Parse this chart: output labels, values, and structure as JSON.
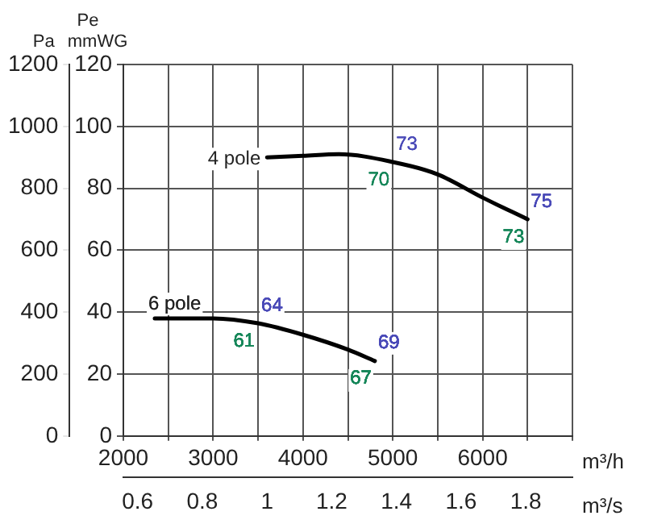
{
  "chart_data": {
    "type": "line",
    "xlabel": "m³/h",
    "x2label": "m³/s",
    "ylabel": "Pe mmWG",
    "y2label": "Pa",
    "xlim": [
      2000,
      7000
    ],
    "xticks": [
      2000,
      {
        "value": 2500,
        "label": null
      },
      3000,
      {
        "value": 3500,
        "label": null
      },
      4000,
      {
        "value": 4500,
        "label": null
      },
      5000,
      {
        "value": 5500,
        "label": null
      },
      6000,
      {
        "value": 6500,
        "label": null
      },
      {
        "value": 7000,
        "label": null
      }
    ],
    "x2lim": [
      0.556,
      1.944
    ],
    "x2ticks": [
      0.6,
      0.8,
      1,
      1.2,
      1.4,
      1.6,
      1.8
    ],
    "ylim": [
      0,
      120
    ],
    "yticks": [
      0,
      20,
      40,
      60,
      80,
      100,
      120
    ],
    "y2lim": [
      0,
      1200
    ],
    "y2ticks": [
      0,
      200,
      400,
      600,
      800,
      1000,
      1200
    ],
    "grid": true,
    "legend": false,
    "marker": "none",
    "line_style": "solid",
    "series": [
      {
        "color": "#000000",
        "x": [
          3600,
          4000,
          4400,
          5000,
          5500,
          6000,
          6500
        ],
        "values": [
          90,
          90.5,
          91,
          88.5,
          84.5,
          77,
          70
        ]
      },
      {
        "color": "#000000",
        "x": [
          2350,
          3000,
          3500,
          4000,
          4500,
          4800
        ],
        "values": [
          38,
          38,
          36.4,
          32.7,
          27.9,
          24.2
        ]
      }
    ],
    "annotations": [
      {
        "text": "4 pole",
        "x": 3600,
        "y": 90
      },
      {
        "text": "6 pole",
        "x": 2350,
        "y": 38
      },
      {
        "text": "73",
        "x": 5000,
        "y": 88.5
      },
      {
        "text": "70",
        "x": 5000,
        "y": 88.5
      },
      {
        "text": "75",
        "x": 6500,
        "y": 70
      },
      {
        "text": "73",
        "x": 6500,
        "y": 70
      },
      {
        "text": "64",
        "x": 3500,
        "y": 36.4
      },
      {
        "text": "61",
        "x": 3500,
        "y": 36.4
      },
      {
        "text": "69",
        "x": 4800,
        "y": 24.2
      },
      {
        "text": "67",
        "x": 4800,
        "y": 24.2
      }
    ]
  }
}
